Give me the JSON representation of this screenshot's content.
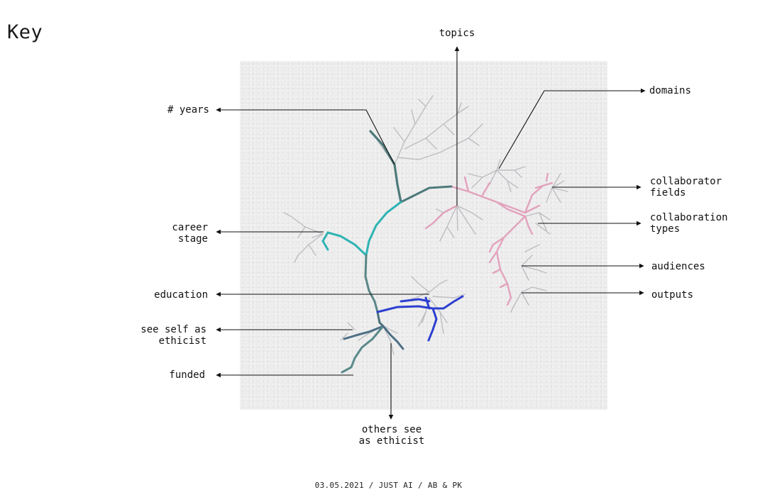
{
  "title": "Key",
  "labels": {
    "topics": "topics",
    "years": "# years",
    "domains": "domains",
    "collaborator_fields": [
      "collaborator",
      "fields"
    ],
    "career_stage": [
      "career",
      "stage"
    ],
    "collaboration_types": [
      "collaboration",
      "types"
    ],
    "audiences": "audiences",
    "education": "education",
    "outputs": "outputs",
    "see_self": [
      "see self as",
      "ethicist"
    ],
    "funded": "funded",
    "others_see": [
      "others see",
      "as ethicist"
    ]
  },
  "footer": "03.05.2021 / JUST AI / AB & PK",
  "colors": {
    "arrow": "#111111",
    "paper": "#ececec",
    "trunk": "#4e7a7a",
    "career": "#2fb3b3",
    "education": "#2d3fd0",
    "topics": "#e29ab8",
    "grey": "#b9b9bf"
  }
}
